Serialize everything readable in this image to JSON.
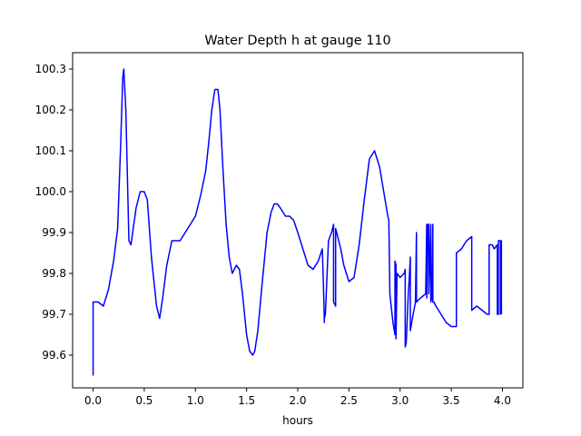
{
  "chart_data": {
    "type": "line",
    "title": "Water Depth h at gauge 110",
    "xlabel": "hours",
    "ylabel": "",
    "xlim": [
      -0.2,
      4.2
    ],
    "ylim": [
      99.52,
      100.34
    ],
    "xticks": [
      0.0,
      0.5,
      1.0,
      1.5,
      2.0,
      2.5,
      3.0,
      3.5,
      4.0
    ],
    "xtick_labels": [
      "0.0",
      "0.5",
      "1.0",
      "1.5",
      "2.0",
      "2.5",
      "3.0",
      "3.5",
      "4.0"
    ],
    "yticks": [
      99.6,
      99.7,
      99.8,
      99.9,
      100.0,
      100.1,
      100.2,
      100.3
    ],
    "ytick_labels": [
      "99.6",
      "99.7",
      "99.8",
      "99.9",
      "100.0",
      "100.1",
      "100.2",
      "100.3"
    ],
    "grid": false,
    "legend": "none",
    "series": [
      {
        "color": "#0000ff",
        "x": [
          0.0,
          0.0,
          0.05,
          0.1,
          0.15,
          0.2,
          0.24,
          0.27,
          0.29,
          0.3,
          0.32,
          0.35,
          0.37,
          0.42,
          0.46,
          0.5,
          0.53,
          0.57,
          0.62,
          0.65,
          0.68,
          0.72,
          0.77,
          0.8,
          0.85,
          0.9,
          0.95,
          1.0,
          1.05,
          1.1,
          1.13,
          1.16,
          1.19,
          1.22,
          1.24,
          1.27,
          1.3,
          1.33,
          1.36,
          1.4,
          1.43,
          1.46,
          1.5,
          1.53,
          1.56,
          1.58,
          1.61,
          1.65,
          1.7,
          1.74,
          1.77,
          1.8,
          1.83,
          1.88,
          1.92,
          1.96,
          2.0,
          2.05,
          2.1,
          2.15,
          2.2,
          2.24,
          2.25,
          2.26,
          2.26,
          2.27,
          2.3,
          2.33,
          2.34,
          2.35,
          2.35,
          2.37,
          2.37,
          2.38,
          2.42,
          2.45,
          2.5,
          2.55,
          2.6,
          2.65,
          2.7,
          2.75,
          2.8,
          2.84,
          2.88,
          2.89,
          2.9,
          2.93,
          2.95,
          2.95,
          2.96,
          2.96,
          2.97,
          3.0,
          3.04,
          3.05,
          3.05,
          3.06,
          3.08,
          3.09,
          3.1,
          3.1,
          3.12,
          3.15,
          3.16,
          3.16,
          3.2,
          3.25,
          3.26,
          3.26,
          3.27,
          3.28,
          3.28,
          3.3,
          3.3,
          3.31,
          3.32,
          3.32,
          3.33,
          3.35,
          3.4,
          3.45,
          3.5,
          3.55,
          3.55,
          3.6,
          3.65,
          3.7,
          3.7,
          3.75,
          3.8,
          3.85,
          3.87,
          3.87,
          3.9,
          3.92,
          3.95,
          3.95,
          3.96,
          3.96,
          3.98,
          3.98,
          3.99,
          3.99
        ],
        "y": [
          99.55,
          99.73,
          99.73,
          99.72,
          99.76,
          99.83,
          99.91,
          100.12,
          100.28,
          100.3,
          100.2,
          99.88,
          99.87,
          99.96,
          100.0,
          100.0,
          99.98,
          99.84,
          99.72,
          99.69,
          99.74,
          99.82,
          99.88,
          99.88,
          99.88,
          99.9,
          99.92,
          99.94,
          99.99,
          100.05,
          100.12,
          100.2,
          100.25,
          100.25,
          100.2,
          100.05,
          99.92,
          99.84,
          99.8,
          99.82,
          99.81,
          99.75,
          99.65,
          99.61,
          99.6,
          99.61,
          99.66,
          99.77,
          99.9,
          99.95,
          99.97,
          99.97,
          99.96,
          99.94,
          99.94,
          99.93,
          99.9,
          99.86,
          99.82,
          99.81,
          99.83,
          99.86,
          99.78,
          99.68,
          99.69,
          99.7,
          99.88,
          99.9,
          99.91,
          99.92,
          99.73,
          99.72,
          99.91,
          99.9,
          99.86,
          99.82,
          99.78,
          99.79,
          99.87,
          99.98,
          100.08,
          100.1,
          100.06,
          100.0,
          99.94,
          99.93,
          99.75,
          99.68,
          99.65,
          99.83,
          99.82,
          99.64,
          99.8,
          99.79,
          99.8,
          99.81,
          99.62,
          99.63,
          99.75,
          99.79,
          99.84,
          99.66,
          99.69,
          99.73,
          99.9,
          99.73,
          99.74,
          99.75,
          99.92,
          99.74,
          99.92,
          99.92,
          99.75,
          99.92,
          99.73,
          99.74,
          99.92,
          99.73,
          99.73,
          99.72,
          99.7,
          99.68,
          99.67,
          99.67,
          99.85,
          99.86,
          99.88,
          99.89,
          99.71,
          99.72,
          99.71,
          99.7,
          99.7,
          99.87,
          99.87,
          99.86,
          99.87,
          99.7,
          99.7,
          99.88,
          99.88,
          99.7,
          99.88,
          99.7
        ]
      }
    ]
  }
}
